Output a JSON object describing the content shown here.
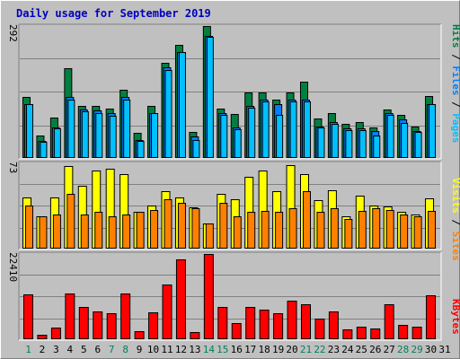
{
  "title": "Daily usage for September 2019",
  "colors": {
    "background": "#c0c0c0",
    "hits": "#008040",
    "files": "#0080ff",
    "pages": "#00c0ff",
    "visits": "#ffff00",
    "sites": "#ff8000",
    "kbytes": "#ff0000",
    "weekend_day": "#00805c",
    "weekday": "#000000"
  },
  "chart_data": [
    {
      "type": "bar",
      "name": "hits-files-pages",
      "right_label": {
        "hits": "Hits",
        "sep1": " / ",
        "files": "Files",
        "sep2": " / ",
        "pages": "Pages"
      },
      "ymax_label": "292",
      "ylim": [
        0,
        292
      ],
      "x": [
        1,
        2,
        3,
        4,
        5,
        6,
        7,
        8,
        9,
        10,
        11,
        12,
        13,
        14,
        15,
        16,
        17,
        18,
        19,
        20,
        21,
        22,
        23,
        24,
        25,
        26,
        27,
        28,
        29,
        30,
        31
      ],
      "series": [
        {
          "name": "Hits",
          "values": [
            135,
            50,
            90,
            198,
            115,
            115,
            110,
            150,
            55,
            115,
            210,
            250,
            58,
            292,
            110,
            98,
            145,
            145,
            130,
            145,
            168,
            88,
            100,
            75,
            80,
            68,
            108,
            95,
            70,
            138,
            0
          ]
        },
        {
          "name": "Files",
          "values": [
            120,
            38,
            68,
            135,
            108,
            105,
            100,
            135,
            40,
            100,
            200,
            235,
            48,
            270,
            100,
            68,
            115,
            130,
            120,
            130,
            130,
            70,
            80,
            65,
            65,
            60,
            100,
            85,
            60,
            120,
            0
          ]
        },
        {
          "name": "Pages",
          "values": [
            120,
            36,
            66,
            130,
            104,
            100,
            94,
            130,
            38,
            99,
            195,
            235,
            40,
            268,
            95,
            64,
            112,
            125,
            95,
            125,
            125,
            68,
            75,
            62,
            62,
            50,
            95,
            78,
            58,
            120,
            0
          ]
        }
      ]
    },
    {
      "type": "bar",
      "name": "visits-sites",
      "right_label": {
        "visits": "Visits",
        "sep": " / ",
        "sites": "Sites"
      },
      "ymax_label": "73",
      "ylim": [
        0,
        73
      ],
      "x": [
        1,
        2,
        3,
        4,
        5,
        6,
        7,
        8,
        9,
        10,
        11,
        12,
        13,
        14,
        15,
        16,
        17,
        18,
        19,
        20,
        21,
        22,
        23,
        24,
        25,
        26,
        27,
        28,
        29,
        30,
        31
      ],
      "series": [
        {
          "name": "Visits",
          "values": [
            45,
            28,
            45,
            72,
            55,
            68,
            70,
            65,
            32,
            38,
            50,
            45,
            36,
            22,
            48,
            43,
            63,
            68,
            50,
            73,
            65,
            42,
            51,
            28,
            46,
            38,
            37,
            32,
            30,
            44,
            0
          ]
        },
        {
          "name": "Sites",
          "values": [
            38,
            28,
            30,
            48,
            30,
            32,
            28,
            30,
            32,
            34,
            43,
            40,
            35,
            22,
            40,
            28,
            32,
            33,
            32,
            35,
            50,
            32,
            35,
            26,
            33,
            35,
            34,
            30,
            28,
            33,
            0
          ]
        }
      ]
    },
    {
      "type": "bar",
      "name": "kbytes",
      "right_label": {
        "kbytes": "KBytes"
      },
      "ymax_label": "22410",
      "ylim": [
        0,
        22410
      ],
      "x": [
        1,
        2,
        3,
        4,
        5,
        6,
        7,
        8,
        9,
        10,
        11,
        12,
        13,
        14,
        15,
        16,
        17,
        18,
        19,
        20,
        21,
        22,
        23,
        24,
        25,
        26,
        27,
        28,
        29,
        30,
        31
      ],
      "series": [
        {
          "name": "KBytes",
          "values": [
            11900,
            1200,
            3100,
            12100,
            8400,
            7400,
            6800,
            12000,
            2100,
            7000,
            14500,
            20900,
            1800,
            22410,
            8400,
            4200,
            8400,
            7900,
            6900,
            10100,
            9200,
            5400,
            7400,
            2500,
            3200,
            2800,
            9100,
            3800,
            3300,
            11500,
            0
          ]
        }
      ]
    }
  ],
  "x_axis": {
    "labels": [
      "1",
      "2",
      "3",
      "4",
      "5",
      "6",
      "7",
      "8",
      "9",
      "10",
      "11",
      "12",
      "13",
      "14",
      "15",
      "16",
      "17",
      "18",
      "19",
      "20",
      "21",
      "22",
      "23",
      "24",
      "25",
      "26",
      "27",
      "28",
      "29",
      "30",
      "31"
    ],
    "weekend": [
      1,
      7,
      8,
      14,
      15,
      21,
      22,
      28,
      29
    ]
  }
}
